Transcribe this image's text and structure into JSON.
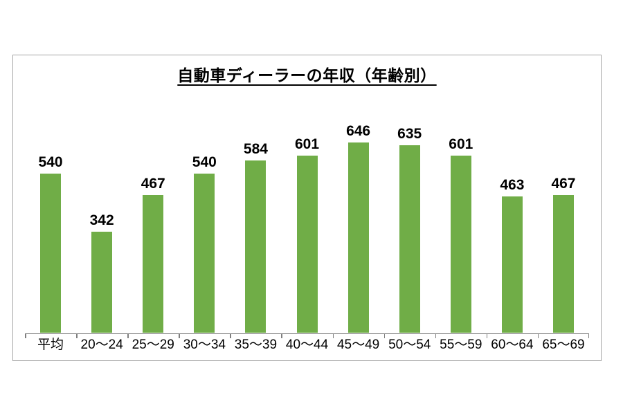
{
  "chart_data": {
    "type": "bar",
    "title": "自動車ディーラーの年収（年齢別）",
    "categories": [
      "平均",
      "20〜24",
      "25〜29",
      "30〜34",
      "35〜39",
      "40〜44",
      "45〜49",
      "50〜54",
      "55〜59",
      "60〜64",
      "65〜69"
    ],
    "values": [
      540,
      342,
      467,
      540,
      584,
      601,
      646,
      635,
      601,
      463,
      467
    ],
    "xlabel": "",
    "ylabel": "",
    "ylim": [
      0,
      800
    ],
    "grid": false,
    "legend": "none",
    "data_labels": true,
    "bar_color": "#70ad47",
    "axis_color": "#7f7f7f",
    "frame_border_color": "#a3a3a3",
    "text_color": "#000000"
  }
}
